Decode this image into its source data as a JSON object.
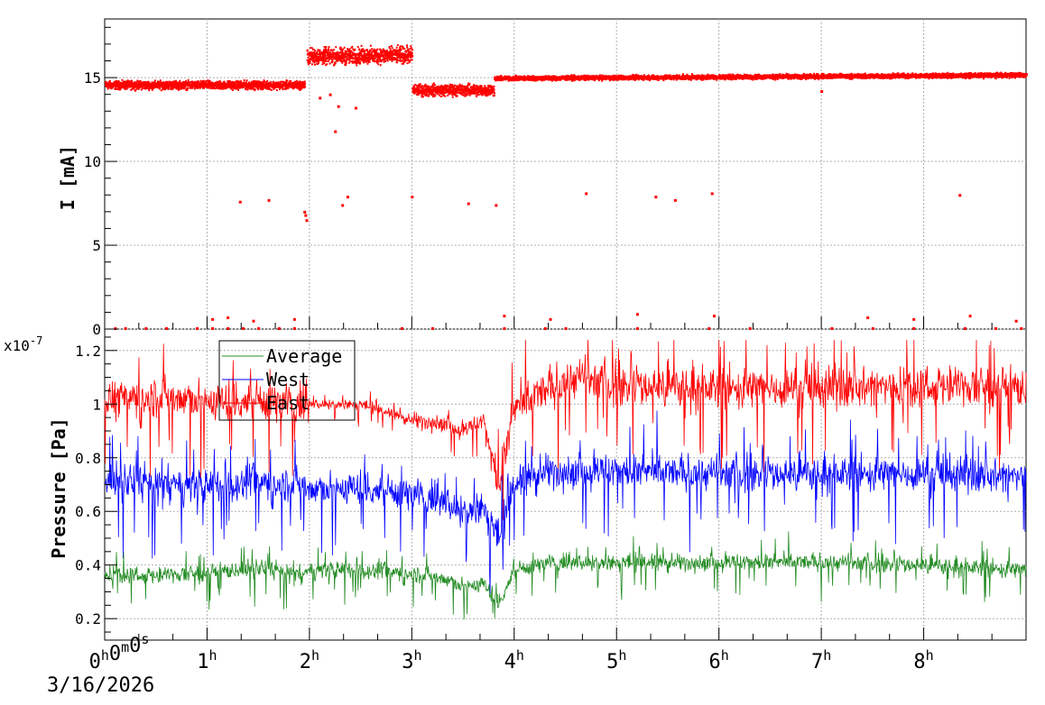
{
  "chart_data": [
    {
      "type": "scatter",
      "ylabel": "I [mA]",
      "x_unit": "hours since 3/16/2026 00:00:00",
      "xlim": [
        0,
        9
      ],
      "ylim": [
        0,
        18.5
      ],
      "yticks": [
        0,
        5,
        10,
        15
      ],
      "ytick_labels": [
        "0",
        "5",
        "10",
        "15"
      ],
      "grid": true,
      "color": "#ff0000",
      "baseline_segments": [
        {
          "x": [
            0.0,
            1.95
          ],
          "y": [
            14.6,
            14.6
          ],
          "spread": 0.35
        },
        {
          "x": [
            1.97,
            3.0
          ],
          "y": [
            16.3,
            16.4
          ],
          "spread": 0.7
        },
        {
          "x": [
            3.0,
            3.8
          ],
          "y": [
            14.3,
            14.3
          ],
          "spread": 0.5
        },
        {
          "x": [
            3.8,
            9.0
          ],
          "y": [
            15.0,
            15.2
          ],
          "spread": 0.2
        }
      ],
      "outliers": [
        {
          "x": 1.32,
          "y": 7.6
        },
        {
          "x": 1.6,
          "y": 7.7
        },
        {
          "x": 1.95,
          "y": 7.0
        },
        {
          "x": 1.96,
          "y": 6.8
        },
        {
          "x": 1.97,
          "y": 6.5
        },
        {
          "x": 2.1,
          "y": 13.8
        },
        {
          "x": 2.2,
          "y": 14.0
        },
        {
          "x": 2.25,
          "y": 11.8
        },
        {
          "x": 2.28,
          "y": 13.3
        },
        {
          "x": 2.32,
          "y": 7.4
        },
        {
          "x": 2.37,
          "y": 7.9
        },
        {
          "x": 2.45,
          "y": 13.2
        },
        {
          "x": 3.0,
          "y": 7.9
        },
        {
          "x": 3.55,
          "y": 7.5
        },
        {
          "x": 3.82,
          "y": 7.4
        },
        {
          "x": 4.7,
          "y": 8.1
        },
        {
          "x": 5.38,
          "y": 7.9
        },
        {
          "x": 5.57,
          "y": 7.7
        },
        {
          "x": 5.93,
          "y": 8.1
        },
        {
          "x": 7.0,
          "y": 14.2
        },
        {
          "x": 8.35,
          "y": 8.0
        }
      ],
      "zero_points_x": [
        0.1,
        0.2,
        0.4,
        0.6,
        0.9,
        1.05,
        1.2,
        1.35,
        1.5,
        1.7,
        1.85,
        2.9,
        3.2,
        3.9,
        4.3,
        4.5,
        5.2,
        5.9,
        6.3,
        7.1,
        7.5,
        7.9,
        8.4,
        8.7,
        8.95
      ],
      "near_zero_points": [
        {
          "x": 1.05,
          "y": 0.6
        },
        {
          "x": 1.2,
          "y": 0.7
        },
        {
          "x": 1.45,
          "y": 0.5
        },
        {
          "x": 1.85,
          "y": 0.6
        },
        {
          "x": 3.9,
          "y": 0.8
        },
        {
          "x": 4.35,
          "y": 0.6
        },
        {
          "x": 5.2,
          "y": 0.9
        },
        {
          "x": 5.95,
          "y": 0.8
        },
        {
          "x": 7.45,
          "y": 0.7
        },
        {
          "x": 7.9,
          "y": 0.6
        },
        {
          "x": 8.45,
          "y": 0.8
        },
        {
          "x": 8.9,
          "y": 0.5
        }
      ]
    },
    {
      "type": "line",
      "ylabel": "Pressure [Pa]",
      "y_exponent_label": "x10",
      "y_exponent_power": "-7",
      "xlim": [
        0,
        9
      ],
      "ylim": [
        0.12,
        1.28
      ],
      "yticks": [
        0.2,
        0.4,
        0.6,
        0.8,
        1.0,
        1.2
      ],
      "ytick_labels": [
        "0.2",
        "0.4",
        "0.6",
        "0.8",
        "1",
        "1.2"
      ],
      "grid": true,
      "legend_position": "top-left",
      "series": [
        {
          "name": "Average",
          "color": "#228b22",
          "profile_x": [
            0,
            0.5,
            1.0,
            1.5,
            1.95,
            2.0,
            2.5,
            3.0,
            3.3,
            3.5,
            3.7,
            3.85,
            4.0,
            4.3,
            5.0,
            6.0,
            7.0,
            8.0,
            9.0
          ],
          "profile_y": [
            0.37,
            0.36,
            0.37,
            0.39,
            0.36,
            0.38,
            0.38,
            0.37,
            0.35,
            0.32,
            0.33,
            0.26,
            0.38,
            0.41,
            0.41,
            0.41,
            0.41,
            0.4,
            0.38
          ],
          "noise": 0.05
        },
        {
          "name": "West",
          "color": "#0000ff",
          "profile_x": [
            0,
            0.5,
            1.0,
            1.5,
            1.95,
            2.0,
            2.5,
            3.0,
            3.3,
            3.5,
            3.7,
            3.85,
            4.0,
            4.3,
            5.0,
            6.0,
            7.0,
            8.0,
            9.0
          ],
          "profile_y": [
            0.72,
            0.7,
            0.69,
            0.71,
            0.7,
            0.68,
            0.69,
            0.67,
            0.64,
            0.6,
            0.62,
            0.5,
            0.7,
            0.75,
            0.75,
            0.74,
            0.74,
            0.74,
            0.73
          ],
          "noise": 0.1
        },
        {
          "name": "East",
          "color": "#ff0000",
          "profile_x": [
            0,
            0.5,
            1.0,
            1.5,
            1.95,
            2.0,
            2.5,
            3.0,
            3.3,
            3.5,
            3.7,
            3.85,
            4.0,
            4.3,
            4.6,
            5.0,
            6.0,
            7.0,
            8.0,
            9.0
          ],
          "profile_y": [
            1.02,
            1.03,
            1.01,
            1.02,
            1.0,
            1.0,
            1.0,
            0.94,
            0.93,
            0.9,
            0.94,
            0.7,
            0.98,
            1.05,
            1.1,
            1.07,
            1.06,
            1.06,
            1.07,
            1.06
          ],
          "noise": 0.12
        }
      ]
    }
  ],
  "x_axis": {
    "ticks": [
      {
        "x": 0,
        "label": "0",
        "sup": "h",
        "label2": "0",
        "sup2": "m",
        "label3": "0",
        "sup3": "s"
      },
      {
        "x": 1,
        "label": "1",
        "sup": "h"
      },
      {
        "x": 2,
        "label": "2",
        "sup": "h"
      },
      {
        "x": 3,
        "label": "3",
        "sup": "h"
      },
      {
        "x": 4,
        "label": "4",
        "sup": "h"
      },
      {
        "x": 5,
        "label": "5",
        "sup": "h"
      },
      {
        "x": 6,
        "label": "6",
        "sup": "h"
      },
      {
        "x": 7,
        "label": "7",
        "sup": "h"
      },
      {
        "x": 8,
        "label": "8",
        "sup": "h"
      }
    ],
    "date_label": "3/16/2026"
  }
}
